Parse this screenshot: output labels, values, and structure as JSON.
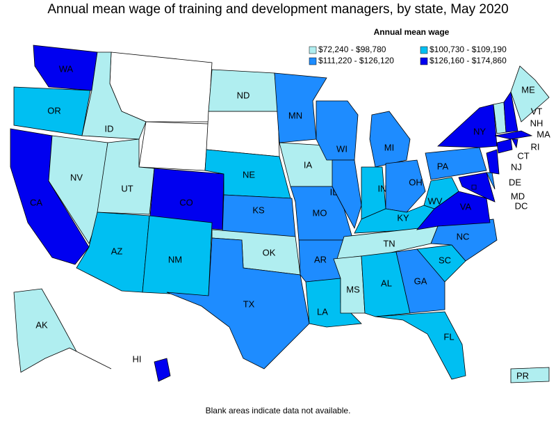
{
  "title": "Annual mean wage of training and development managers, by state, May 2020",
  "legend": {
    "title": "Annual mean wage",
    "items": [
      {
        "label": "$72,240 - $98,780",
        "color": "#b0eef0"
      },
      {
        "label": "$100,730 - $109,190",
        "color": "#00bff2"
      },
      {
        "label": "$111,220 - $126,120",
        "color": "#1e8cff"
      },
      {
        "label": "$126,160 - $174,860",
        "color": "#0000f0"
      }
    ]
  },
  "states": [
    {
      "abbr": "WA",
      "color": "#0000f0"
    },
    {
      "abbr": "OR",
      "color": "#00bff2"
    },
    {
      "abbr": "CA",
      "color": "#0000f0"
    },
    {
      "abbr": "NV",
      "color": "#b0eef0"
    },
    {
      "abbr": "ID",
      "color": "#b0eef0"
    },
    {
      "abbr": "UT",
      "color": "#b0eef0"
    },
    {
      "abbr": "CO",
      "color": "#0000f0"
    },
    {
      "abbr": "AZ",
      "color": "#00bff2"
    },
    {
      "abbr": "NM",
      "color": "#00bff2"
    },
    {
      "abbr": "ND",
      "color": "#b0eef0"
    },
    {
      "abbr": "NE",
      "color": "#00bff2"
    },
    {
      "abbr": "KS",
      "color": "#1e8cff"
    },
    {
      "abbr": "OK",
      "color": "#b0eef0"
    },
    {
      "abbr": "TX",
      "color": "#1e8cff"
    },
    {
      "abbr": "MN",
      "color": "#1e8cff"
    },
    {
      "abbr": "IA",
      "color": "#b0eef0"
    },
    {
      "abbr": "MO",
      "color": "#1e8cff"
    },
    {
      "abbr": "AR",
      "color": "#1e8cff"
    },
    {
      "abbr": "LA",
      "color": "#00bff2"
    },
    {
      "abbr": "WI",
      "color": "#1e8cff"
    },
    {
      "abbr": "IL",
      "color": "#1e8cff"
    },
    {
      "abbr": "MI",
      "color": "#1e8cff"
    },
    {
      "abbr": "IN",
      "color": "#00bff2"
    },
    {
      "abbr": "OH",
      "color": "#1e8cff"
    },
    {
      "abbr": "KY",
      "color": "#00bff2"
    },
    {
      "abbr": "TN",
      "color": "#b0eef0"
    },
    {
      "abbr": "MS",
      "color": "#b0eef0"
    },
    {
      "abbr": "AL",
      "color": "#00bff2"
    },
    {
      "abbr": "GA",
      "color": "#1e8cff"
    },
    {
      "abbr": "FL",
      "color": "#00bff2"
    },
    {
      "abbr": "SC",
      "color": "#00bff2"
    },
    {
      "abbr": "NC",
      "color": "#1e8cff"
    },
    {
      "abbr": "VA",
      "color": "#0000f0"
    },
    {
      "abbr": "WV",
      "color": "#00bff2"
    },
    {
      "abbr": "PA",
      "color": "#1e8cff"
    },
    {
      "abbr": "NY",
      "color": "#0000f0"
    },
    {
      "abbr": "MD",
      "color": "#0000f0"
    },
    {
      "abbr": "DE",
      "color": "#1e8cff"
    },
    {
      "abbr": "NJ",
      "color": "#0000f0"
    },
    {
      "abbr": "CT",
      "color": "#0000f0"
    },
    {
      "abbr": "RI",
      "color": "#0000f0"
    },
    {
      "abbr": "MA",
      "color": "#0000f0"
    },
    {
      "abbr": "VT",
      "color": "#b0eef0"
    },
    {
      "abbr": "NH",
      "color": "#0000f0"
    },
    {
      "abbr": "ME",
      "color": "#b0eef0"
    },
    {
      "abbr": "DC",
      "color": "#0000f0"
    },
    {
      "abbr": "AK",
      "color": "#b0eef0"
    },
    {
      "abbr": "HI",
      "color": "#0000f0"
    },
    {
      "abbr": "PR",
      "color": "#b0eef0"
    }
  ],
  "note": "Blank areas indicate data not available."
}
